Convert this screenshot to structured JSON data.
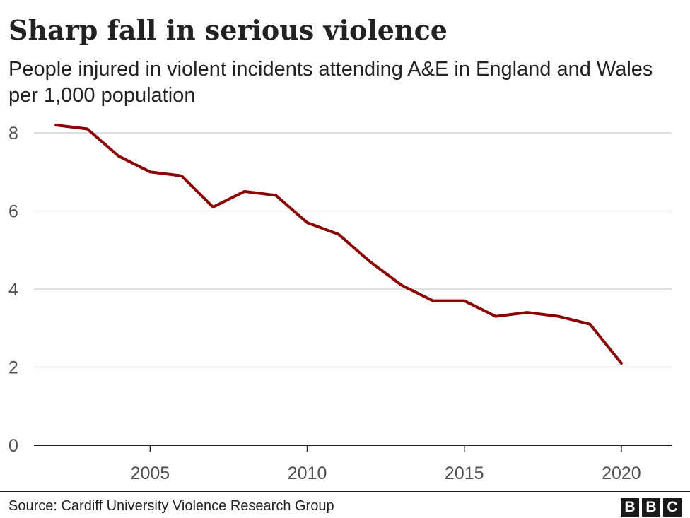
{
  "chart_data": {
    "type": "line",
    "title": "Sharp fall in serious violence",
    "subtitle": "People injured in violent incidents attending A&E in England and Wales per 1,000 population",
    "xlabel": "",
    "ylabel": "",
    "xlim": [
      2001.3,
      2021.6
    ],
    "ylim": [
      0,
      8
    ],
    "yticks": [
      0,
      2,
      4,
      6,
      8
    ],
    "xticks": [
      2005,
      2010,
      2015,
      2020
    ],
    "grid": true,
    "series": [
      {
        "color": "#8b0000",
        "x": [
          2002,
          2003,
          2004,
          2005,
          2006,
          2007,
          2008,
          2009,
          2010,
          2011,
          2012,
          2013,
          2014,
          2015,
          2016,
          2017,
          2018,
          2019,
          2020
        ],
        "y": [
          8.2,
          8.1,
          7.4,
          7.0,
          6.9,
          6.1,
          6.5,
          6.4,
          5.7,
          5.4,
          4.7,
          4.1,
          3.7,
          3.7,
          3.3,
          3.4,
          3.3,
          3.1,
          2.1
        ]
      }
    ]
  },
  "footer": {
    "source": "Source: Cardiff University Violence Research Group",
    "logo": [
      "B",
      "B",
      "C"
    ]
  }
}
